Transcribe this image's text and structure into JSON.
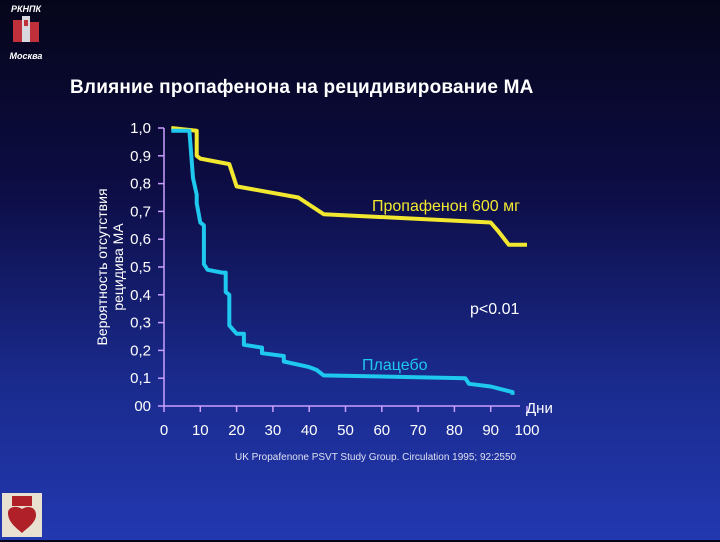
{
  "header": {
    "org_abbr": "РКНПК",
    "city": "Москва"
  },
  "title": "Влияние пропафенона на рецидивирование МА",
  "chart_data": {
    "type": "line",
    "title": "Влияние пропафенона на рецидивирование МА",
    "ylabel_line1": "Вероятность отсутствия",
    "ylabel_line2": "рецидива МА",
    "xlabel": "Дни",
    "xlim": [
      0,
      100
    ],
    "ylim": [
      0,
      1.0
    ],
    "x_ticks": [
      0,
      10,
      20,
      30,
      40,
      50,
      60,
      70,
      80,
      90,
      100
    ],
    "y_tick_labels": [
      "00",
      "0,1",
      "0,2",
      "0,3",
      "0,4",
      "0,5",
      "0,6",
      "0,7",
      "0,8",
      "0,9",
      "1,0"
    ],
    "series": [
      {
        "name": "Пропафенон 600 мг",
        "color": "#f2e830",
        "x": [
          2,
          9,
          9,
          10,
          18,
          19,
          20,
          37,
          44,
          90,
          92,
          95,
          100
        ],
        "y": [
          1.0,
          0.99,
          0.9,
          0.89,
          0.87,
          0.83,
          0.79,
          0.75,
          0.69,
          0.66,
          0.63,
          0.58,
          0.58
        ]
      },
      {
        "name": "Плацебо",
        "color": "#1ec8ee",
        "x": [
          2,
          7,
          8,
          9,
          9,
          10,
          11,
          11,
          12,
          16,
          17,
          17,
          18,
          18,
          20,
          22,
          22,
          27,
          27,
          33,
          33,
          40,
          42,
          43,
          44,
          83,
          84,
          90,
          93,
          96,
          96
        ],
        "y": [
          0.99,
          0.99,
          0.82,
          0.76,
          0.73,
          0.66,
          0.65,
          0.51,
          0.49,
          0.48,
          0.48,
          0.41,
          0.4,
          0.29,
          0.26,
          0.26,
          0.22,
          0.21,
          0.19,
          0.18,
          0.16,
          0.14,
          0.13,
          0.12,
          0.11,
          0.1,
          0.08,
          0.07,
          0.06,
          0.05,
          0.04
        ]
      }
    ],
    "annotations": {
      "propafenone": "Пропафенон 600 мг",
      "pvalue": "p<0.01",
      "placebo": "Плацебо"
    },
    "citation": "UK Propafenone PSVT Study Group. Circulation 1995; 92:2550"
  }
}
